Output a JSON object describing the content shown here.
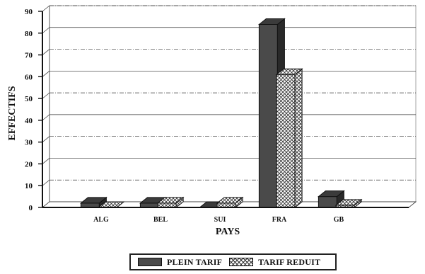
{
  "chart_data": {
    "type": "bar",
    "xlabel": "PAYS",
    "ylabel": "EFFECTIFS",
    "ylim": [
      0,
      90
    ],
    "yticks": [
      0,
      10,
      20,
      30,
      40,
      50,
      60,
      70,
      80,
      90
    ],
    "categories": [
      "ALG",
      "BEL",
      "SUI",
      "FRA",
      "GB"
    ],
    "series": [
      {
        "name": "PLEIN TARIF",
        "values": [
          2,
          2,
          0,
          84,
          5
        ],
        "color": "#4a4a4a"
      },
      {
        "name": "TARIF REDUIT",
        "values": [
          0,
          2,
          2,
          61,
          1
        ],
        "color": "#ffffff"
      }
    ],
    "legend_position": "bottom",
    "grid": true,
    "style": "3d-bar"
  }
}
